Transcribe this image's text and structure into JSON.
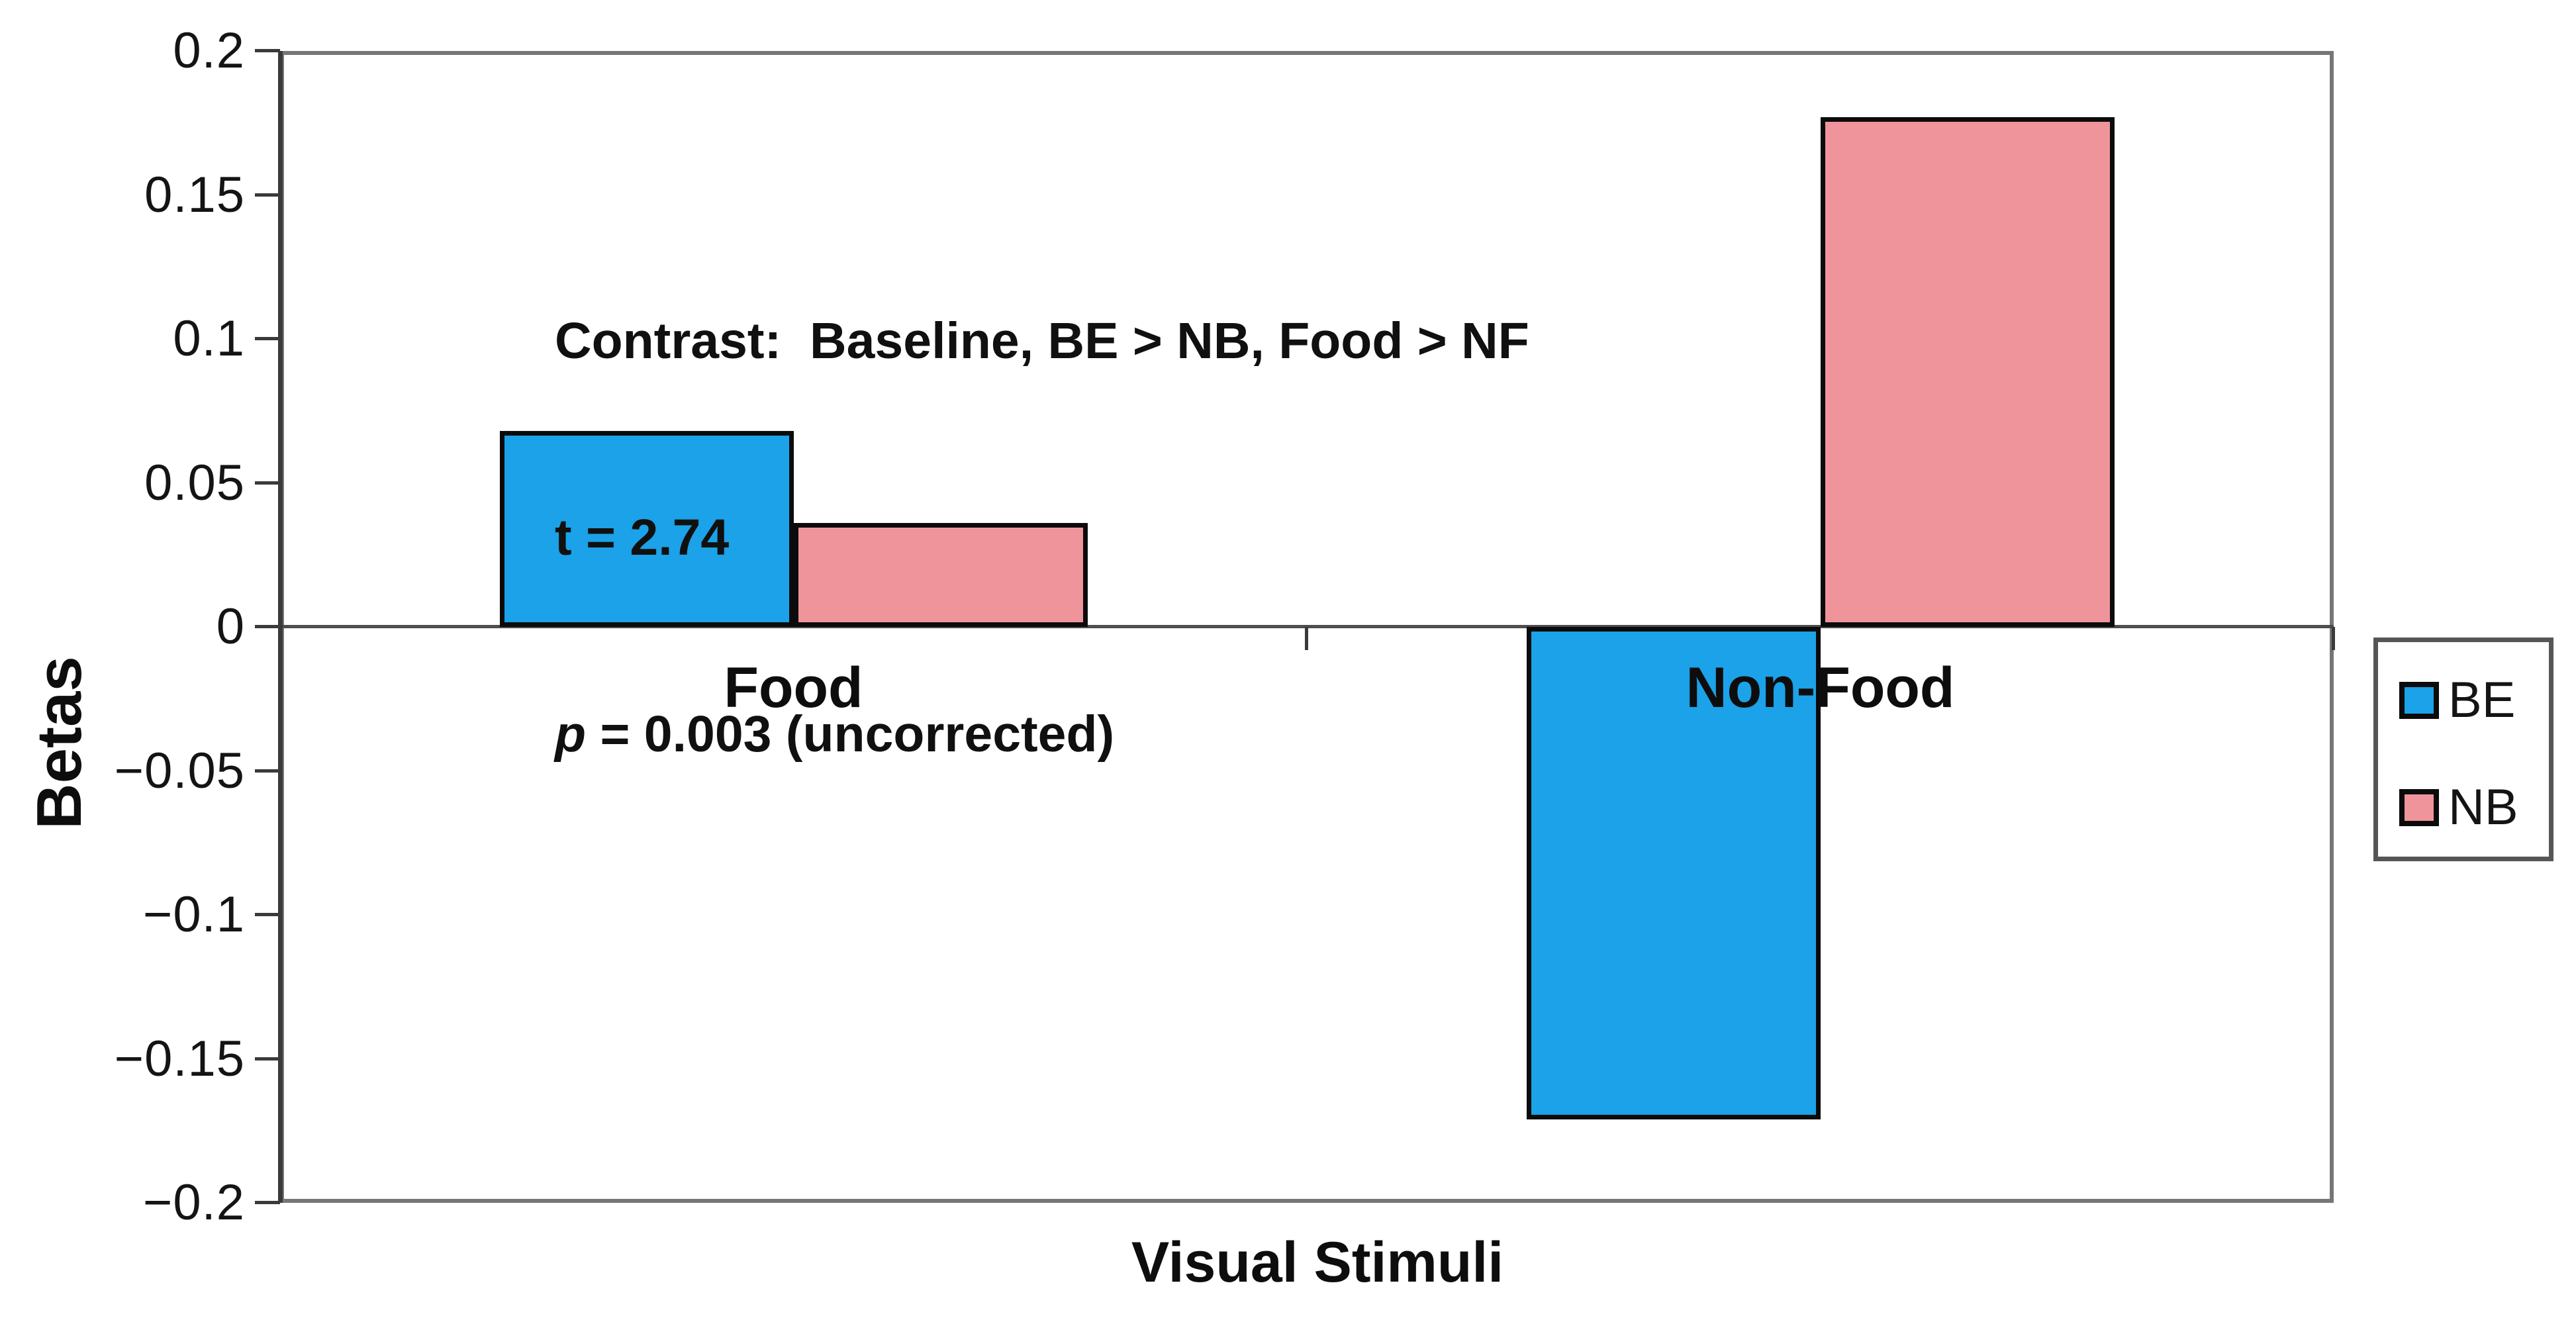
{
  "chart_data": {
    "type": "bar",
    "title": "",
    "xlabel": "Visual Stimuli",
    "ylabel": "Betas",
    "categories": [
      "Food",
      "Non-Food"
    ],
    "series": [
      {
        "name": "BE",
        "color": "#1BA2E8",
        "values": [
          0.068,
          -0.171
        ]
      },
      {
        "name": "NB",
        "color": "#F0949B",
        "values": [
          0.036,
          0.177
        ]
      }
    ],
    "ylim": [
      -0.2,
      0.2
    ],
    "y_tick_step": 0.05,
    "y_ticks": [
      {
        "value": 0.2,
        "label": "0.2"
      },
      {
        "value": 0.15,
        "label": "0.15"
      },
      {
        "value": 0.1,
        "label": "0.1"
      },
      {
        "value": 0.05,
        "label": "0.05"
      },
      {
        "value": 0,
        "label": "0"
      },
      {
        "value": -0.05,
        "label": "−0.05"
      },
      {
        "value": -0.1,
        "label": "−0.1"
      },
      {
        "value": -0.15,
        "label": "−0.15"
      },
      {
        "value": -0.2,
        "label": "−0.2"
      }
    ],
    "grid": "zero-baseline-only",
    "legend_position": "outside-right",
    "bar_outline_color": "#0b0b0b",
    "axis_color": "#767676"
  },
  "annotation": {
    "line1": "Contrast:  Baseline, BE > NB, Food > NF",
    "line2": "t = 2.74",
    "line3_var": "p",
    "line3_rest": " = 0.003 (uncorrected)"
  },
  "axes": {
    "ylabel": "Betas",
    "xlabel": "Visual Stimuli"
  },
  "colors": {
    "be_blue": "#1BA2E8",
    "nb_pink": "#F0949B",
    "axis_gray": "#767676",
    "text_black": "#0d0d0d"
  }
}
